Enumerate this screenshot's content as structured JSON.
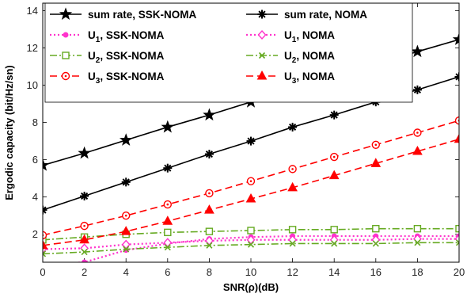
{
  "chart_data": {
    "type": "line",
    "xlabel": "SNR(ρ)(dB)",
    "ylabel": "Ergodic capacity (bit/Hz/sn)",
    "xlim": [
      0,
      20
    ],
    "ylim": [
      0.5,
      14.4
    ],
    "xticks": [
      0,
      2,
      4,
      6,
      8,
      10,
      12,
      14,
      16,
      18,
      20
    ],
    "yticks": [
      2,
      4,
      6,
      8,
      10,
      12,
      14
    ],
    "x": [
      0,
      2,
      4,
      6,
      8,
      10,
      12,
      14,
      16,
      18,
      20
    ],
    "grid": false,
    "legend_position": "top",
    "series": [
      {
        "key": "sum-rate-ssk-noma",
        "name": "sum rate, SSK-NOMA",
        "label_main": "sum rate, SSK-NOMA",
        "label_sub": "",
        "label_rest": "",
        "color": "#000000",
        "dash": "solid",
        "marker": "star",
        "values": [
          5.7,
          6.35,
          7.05,
          7.75,
          8.4,
          9.1,
          9.8,
          10.45,
          11.15,
          11.8,
          12.45
        ]
      },
      {
        "key": "sum-rate-noma",
        "name": "sum rate, NOMA",
        "label_main": "sum rate, NOMA",
        "label_sub": "",
        "label_rest": "",
        "color": "#000000",
        "dash": "solid",
        "marker": "asterisk",
        "values": [
          3.3,
          4.05,
          4.8,
          5.55,
          6.3,
          7.0,
          7.75,
          8.4,
          9.1,
          9.75,
          10.45
        ]
      },
      {
        "key": "u1-ssk-noma",
        "name": "U1, SSK-NOMA",
        "label_main": "U",
        "label_sub": "1",
        "label_rest": ", SSK-NOMA",
        "color": "#ff33cc",
        "dash": "dot",
        "marker": "dot",
        "values": [
          0.35,
          0.5,
          1.15,
          1.5,
          1.75,
          1.85,
          1.9,
          1.9,
          1.9,
          1.9,
          1.9
        ]
      },
      {
        "key": "u1-noma",
        "name": "U1, NOMA",
        "label_main": "U",
        "label_sub": "1",
        "label_rest": ", NOMA",
        "color": "#ff33cc",
        "dash": "dot",
        "marker": "diamond",
        "values": [
          1.2,
          1.25,
          1.45,
          1.55,
          1.65,
          1.7,
          1.7,
          1.7,
          1.7,
          1.75,
          1.75
        ]
      },
      {
        "key": "u2-ssk-noma",
        "name": "U2, SSK-NOMA",
        "label_main": "U",
        "label_sub": "2",
        "label_rest": ", SSK-NOMA",
        "color": "#66aa22",
        "dash": "dashdot",
        "marker": "square",
        "values": [
          1.7,
          1.85,
          2.0,
          2.1,
          2.15,
          2.2,
          2.25,
          2.25,
          2.3,
          2.3,
          2.3
        ]
      },
      {
        "key": "u2-noma",
        "name": "U2, NOMA",
        "label_main": "U",
        "label_sub": "2",
        "label_rest": ", NOMA",
        "color": "#66aa22",
        "dash": "dashdot",
        "marker": "x",
        "values": [
          0.95,
          1.05,
          1.2,
          1.3,
          1.4,
          1.45,
          1.5,
          1.5,
          1.5,
          1.55,
          1.55
        ]
      },
      {
        "key": "u3-ssk-noma",
        "name": "U3, SSK-NOMA",
        "label_main": "U",
        "label_sub": "3",
        "label_rest": ", SSK-NOMA",
        "color": "#ff0000",
        "dash": "dash",
        "marker": "circle",
        "values": [
          1.95,
          2.45,
          3.0,
          3.6,
          4.2,
          4.85,
          5.5,
          6.15,
          6.8,
          7.45,
          8.1
        ]
      },
      {
        "key": "u3-noma",
        "name": "U3, NOMA",
        "label_main": "U",
        "label_sub": "3",
        "label_rest": ", NOMA",
        "color": "#ff0000",
        "dash": "dash",
        "marker": "triangle",
        "values": [
          1.4,
          1.7,
          2.15,
          2.7,
          3.3,
          3.9,
          4.5,
          5.15,
          5.8,
          6.45,
          7.1
        ]
      }
    ],
    "legend_order": [
      "sum-rate-ssk-noma",
      "sum-rate-noma",
      "u1-ssk-noma",
      "u1-noma",
      "u2-ssk-noma",
      "u2-noma",
      "u3-ssk-noma",
      "u3-noma"
    ]
  }
}
